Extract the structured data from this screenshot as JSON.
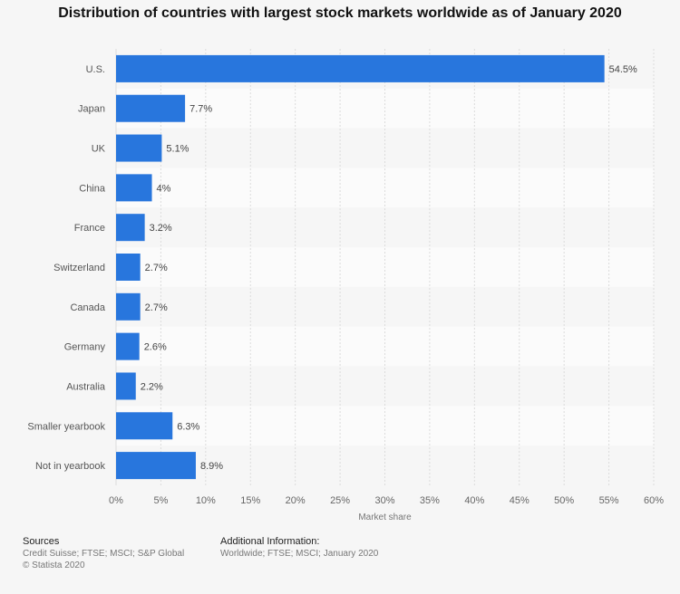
{
  "chart_data": {
    "type": "bar",
    "orientation": "horizontal",
    "title": "Distribution of countries with largest stock markets worldwide as of January 2020",
    "xlabel": "Market share",
    "ylabel": "",
    "categories": [
      "U.S.",
      "Japan",
      "UK",
      "China",
      "France",
      "Switzerland",
      "Canada",
      "Germany",
      "Australia",
      "Smaller yearbook",
      "Not in yearbook"
    ],
    "values": [
      54.5,
      7.7,
      5.1,
      4,
      3.2,
      2.7,
      2.7,
      2.6,
      2.2,
      6.3,
      8.9
    ],
    "value_labels": [
      "54.5%",
      "7.7%",
      "5.1%",
      "4%",
      "3.2%",
      "2.7%",
      "2.7%",
      "2.6%",
      "2.2%",
      "6.3%",
      "8.9%"
    ],
    "xlim": [
      0,
      60
    ],
    "ticks": [
      0,
      5,
      10,
      15,
      20,
      25,
      30,
      35,
      40,
      45,
      50,
      55,
      60
    ],
    "tick_labels": [
      "0%",
      "5%",
      "10%",
      "15%",
      "20%",
      "25%",
      "30%",
      "35%",
      "40%",
      "45%",
      "50%",
      "55%",
      "60%"
    ],
    "grid": true,
    "bar_color": "#2876dd"
  },
  "footer": {
    "sources_heading": "Sources",
    "sources_line1": "Credit Suisse; FTSE; MSCI; S&P Global",
    "sources_line2": "© Statista 2020",
    "info_heading": "Additional Information:",
    "info_line1": "Worldwide; FTSE; MSCI; January 2020"
  },
  "colors": {
    "background": "#f6f6f6",
    "row_alt": "#fbfbfb",
    "grid": "#dcdcdc",
    "bar": "#2876dd"
  }
}
